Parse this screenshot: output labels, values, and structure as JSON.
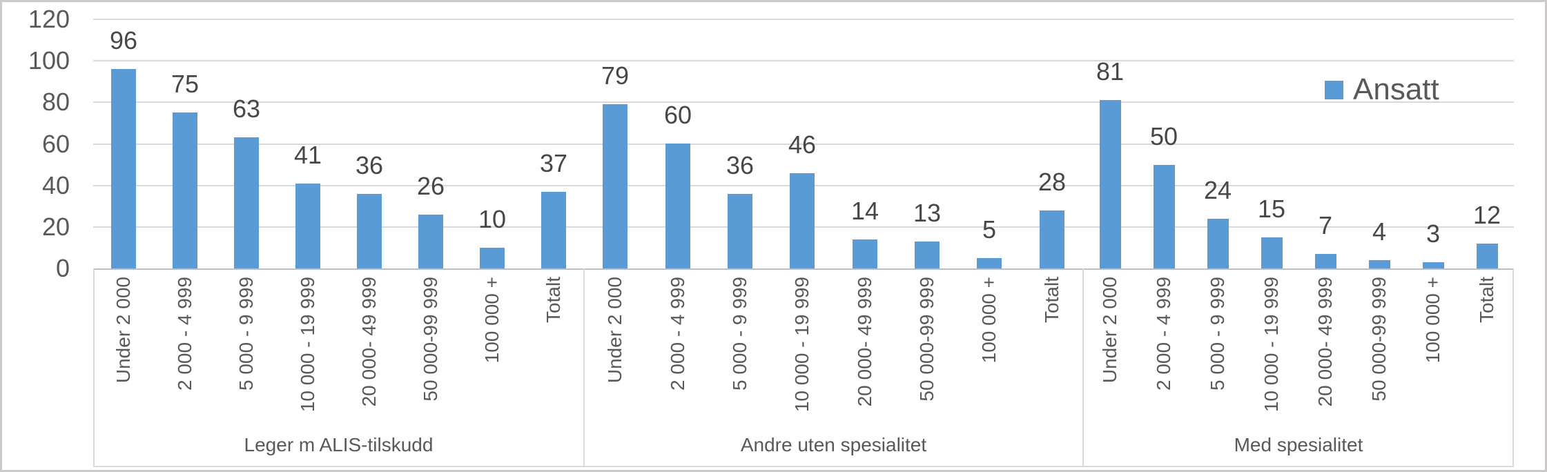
{
  "chart_data": {
    "type": "bar",
    "title": "",
    "series": [
      {
        "name": "Ansatt",
        "color": "#5B9BD5"
      }
    ],
    "categories": [
      "Under 2 000",
      "2 000 - 4 999",
      "5 000 - 9 999",
      "10 000 - 19 999",
      "20 000- 49 999",
      "50 000-99 999",
      "100 000 +",
      "Totalt"
    ],
    "groups": [
      {
        "label": "Leger m ALIS-tilskudd",
        "values": [
          96,
          75,
          63,
          41,
          36,
          26,
          10,
          37
        ]
      },
      {
        "label": "Andre uten spesialitet",
        "values": [
          79,
          60,
          36,
          46,
          14,
          13,
          5,
          28
        ]
      },
      {
        "label": "Med spesialitet",
        "values": [
          81,
          50,
          24,
          15,
          7,
          4,
          3,
          12
        ]
      }
    ],
    "y_axis": {
      "min": 0,
      "max": 120,
      "tick_interval": 20,
      "ticks": [
        0,
        20,
        40,
        60,
        80,
        100,
        120
      ]
    },
    "grid": true,
    "legend_position": "top-right",
    "data_labels": "outside-end"
  },
  "colors": {
    "bar": "#5B9BD5",
    "axis_text": "#595959",
    "data_label_text": "#474747",
    "gridline": "#D9D9D9",
    "axis_line": "#BFBFBF",
    "outer_border": "#CBCAC8"
  }
}
